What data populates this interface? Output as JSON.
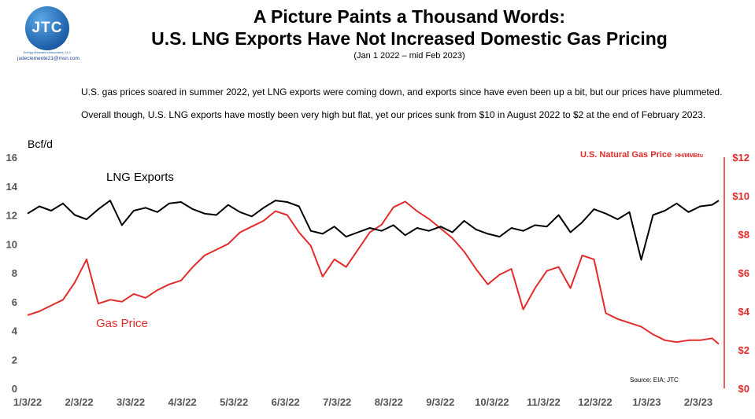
{
  "logo": {
    "text": "JTC",
    "company": "Energy Research Associates, LLC",
    "email": "judeclemente21@msn.com"
  },
  "header": {
    "title_line1": "A Picture Paints a Thousand Words:",
    "title_line2": "U.S. LNG Exports Have Not Increased Domestic Gas Pricing",
    "subtitle": "(Jan 1 2022 – mid Feb 2023)"
  },
  "notes": {
    "line1": "U.S. gas prices soared in summer 2022, yet LNG exports were coming down, and exports since have even been up a bit, but our prices have plummeted.",
    "line2": "Overall though, U.S. LNG exports have mostly been very high but flat, yet our prices sunk from $10 in August 2022 to $2 at the end of February 2023."
  },
  "colors": {
    "exports": "#000000",
    "price": "#e32b2b"
  },
  "chart_data": {
    "type": "line",
    "left_axis_label": "Bcf/d",
    "right_axis_title": "U.S. Natural Gas Price",
    "right_axis_unit": "HH/MMBtu",
    "left_ylim": [
      0,
      16
    ],
    "right_ylim": [
      0,
      12
    ],
    "left_ticks": [
      "0",
      "2",
      "4",
      "6",
      "8",
      "10",
      "12",
      "14",
      "16"
    ],
    "right_ticks": [
      "$0",
      "$2",
      "$4",
      "$6",
      "$8",
      "$10",
      "$12"
    ],
    "x_ticks": [
      "1/3/22",
      "2/3/22",
      "3/3/22",
      "4/3/22",
      "5/3/22",
      "6/3/22",
      "7/3/22",
      "8/3/22",
      "9/3/22",
      "10/3/22",
      "11/3/22",
      "12/3/22",
      "1/3/23",
      "2/3/23"
    ],
    "source": "Source: EIA; JTC",
    "grid": false,
    "series": [
      {
        "name": "LNG Exports",
        "axis": "left",
        "x": [
          "2022-01-03",
          "2022-01-10",
          "2022-01-17",
          "2022-01-24",
          "2022-01-31",
          "2022-02-07",
          "2022-02-14",
          "2022-02-21",
          "2022-02-28",
          "2022-03-07",
          "2022-03-14",
          "2022-03-21",
          "2022-03-28",
          "2022-04-04",
          "2022-04-11",
          "2022-04-18",
          "2022-04-25",
          "2022-05-02",
          "2022-05-09",
          "2022-05-16",
          "2022-05-23",
          "2022-05-30",
          "2022-06-06",
          "2022-06-13",
          "2022-06-20",
          "2022-06-27",
          "2022-07-04",
          "2022-07-11",
          "2022-07-18",
          "2022-07-25",
          "2022-08-01",
          "2022-08-08",
          "2022-08-15",
          "2022-08-22",
          "2022-08-29",
          "2022-09-05",
          "2022-09-12",
          "2022-09-19",
          "2022-09-26",
          "2022-10-03",
          "2022-10-10",
          "2022-10-17",
          "2022-10-24",
          "2022-10-31",
          "2022-11-07",
          "2022-11-14",
          "2022-11-21",
          "2022-11-28",
          "2022-12-05",
          "2022-12-12",
          "2022-12-19",
          "2022-12-26",
          "2023-01-02",
          "2023-01-09",
          "2023-01-16",
          "2023-01-23",
          "2023-01-30",
          "2023-02-06",
          "2023-02-13",
          "2023-02-17"
        ],
        "values": [
          12.1,
          12.6,
          12.3,
          12.8,
          12.0,
          11.7,
          12.4,
          13.0,
          11.3,
          12.3,
          12.5,
          12.2,
          12.8,
          12.9,
          12.4,
          12.1,
          12.0,
          12.7,
          12.2,
          11.9,
          12.5,
          13.0,
          12.9,
          12.6,
          10.9,
          10.7,
          11.2,
          10.5,
          10.8,
          11.1,
          10.9,
          11.3,
          10.6,
          11.1,
          10.9,
          11.2,
          10.8,
          11.6,
          11.0,
          10.7,
          10.5,
          11.1,
          10.9,
          11.3,
          11.2,
          12.0,
          10.8,
          11.5,
          12.4,
          12.1,
          11.7,
          12.2,
          8.9,
          12.0,
          12.3,
          12.8,
          12.2,
          12.6,
          12.7,
          13.0
        ]
      },
      {
        "name": "Gas Price",
        "axis": "right",
        "x": [
          "2022-01-03",
          "2022-01-10",
          "2022-01-17",
          "2022-01-24",
          "2022-01-31",
          "2022-02-07",
          "2022-02-14",
          "2022-02-21",
          "2022-02-28",
          "2022-03-07",
          "2022-03-14",
          "2022-03-21",
          "2022-03-28",
          "2022-04-04",
          "2022-04-11",
          "2022-04-18",
          "2022-04-25",
          "2022-05-02",
          "2022-05-09",
          "2022-05-16",
          "2022-05-23",
          "2022-05-30",
          "2022-06-06",
          "2022-06-13",
          "2022-06-20",
          "2022-06-27",
          "2022-07-04",
          "2022-07-11",
          "2022-07-18",
          "2022-07-25",
          "2022-08-01",
          "2022-08-08",
          "2022-08-15",
          "2022-08-22",
          "2022-08-29",
          "2022-09-05",
          "2022-09-12",
          "2022-09-19",
          "2022-09-26",
          "2022-10-03",
          "2022-10-10",
          "2022-10-17",
          "2022-10-24",
          "2022-10-31",
          "2022-11-07",
          "2022-11-14",
          "2022-11-21",
          "2022-11-28",
          "2022-12-05",
          "2022-12-12",
          "2022-12-19",
          "2022-12-26",
          "2023-01-02",
          "2023-01-09",
          "2023-01-16",
          "2023-01-23",
          "2023-01-30",
          "2023-02-06",
          "2023-02-13",
          "2023-02-17"
        ],
        "values": [
          3.8,
          4.0,
          4.3,
          4.6,
          5.5,
          6.7,
          4.4,
          4.6,
          4.5,
          4.9,
          4.7,
          5.1,
          5.4,
          5.6,
          6.3,
          6.9,
          7.2,
          7.5,
          8.1,
          8.4,
          8.7,
          9.2,
          9.0,
          8.1,
          7.4,
          5.8,
          6.7,
          6.3,
          7.2,
          8.1,
          8.5,
          9.4,
          9.7,
          9.2,
          8.8,
          8.3,
          7.8,
          7.1,
          6.2,
          5.4,
          5.9,
          6.2,
          4.1,
          5.2,
          6.1,
          6.3,
          5.2,
          6.9,
          6.7,
          3.9,
          3.6,
          3.4,
          3.2,
          2.8,
          2.5,
          2.4,
          2.5,
          2.5,
          2.6,
          2.3
        ]
      }
    ]
  }
}
